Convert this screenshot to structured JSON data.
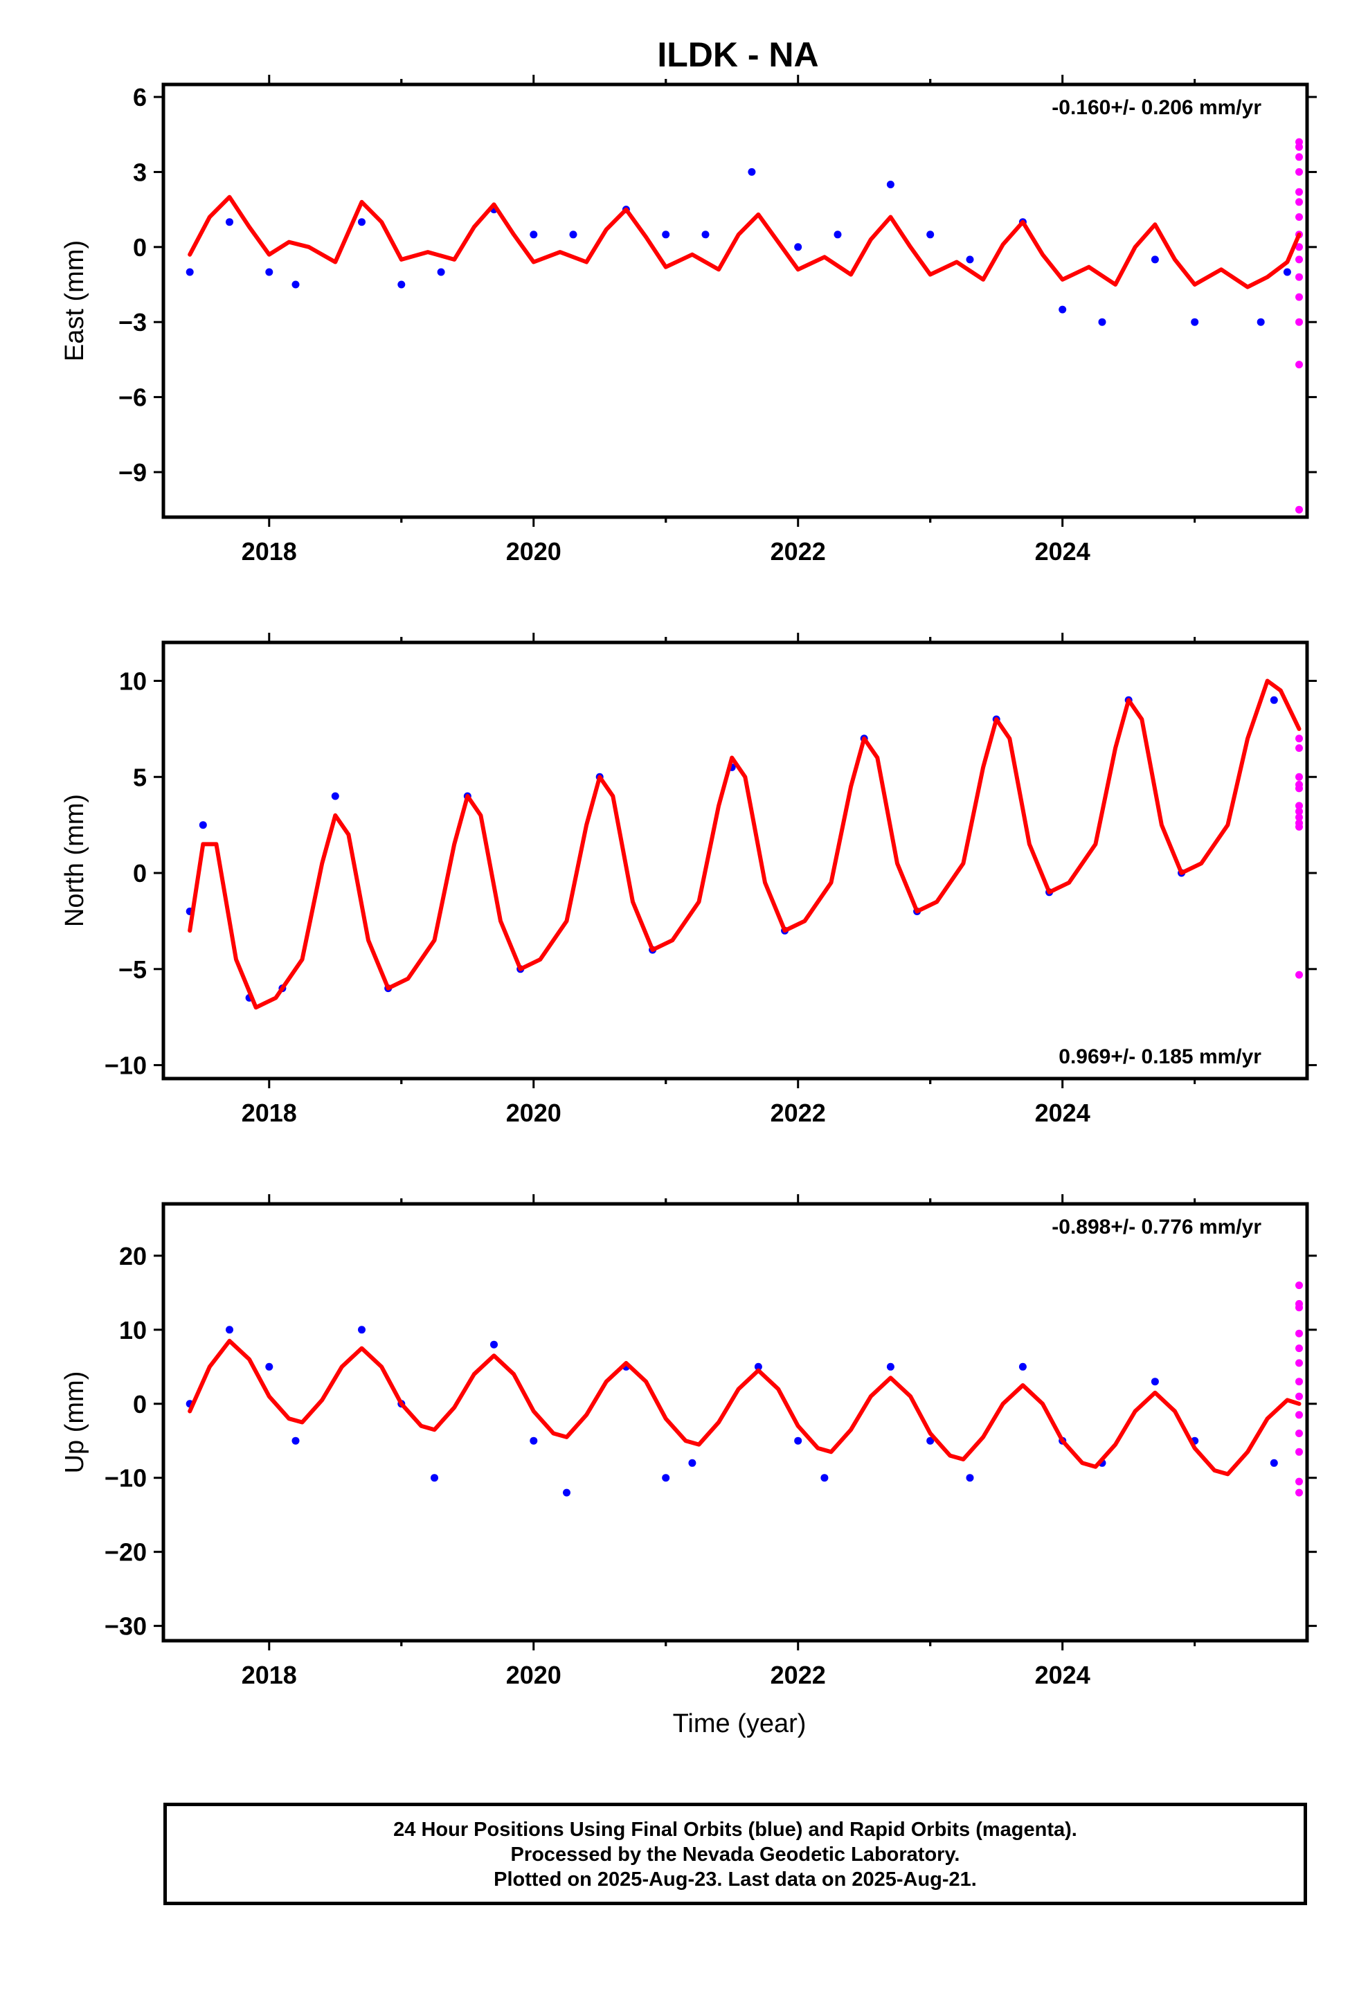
{
  "title": "ILDK - NA",
  "xlabel": "Time (year)",
  "colors": {
    "final": "#0000ff",
    "rapid": "#ff00ff",
    "fit": "#ff0000",
    "frame": "#000000"
  },
  "chart_data": [
    {
      "type": "scatter",
      "ylabel": "East (mm)",
      "rate_text": "-0.160+/- 0.206 mm/yr",
      "rate_pos": "top-right",
      "xlim": [
        2017.2,
        2025.85
      ],
      "ylim": [
        -10.8,
        6.5
      ],
      "xticks": [
        2018,
        2020,
        2022,
        2024
      ],
      "yticks": [
        -9,
        -6,
        -3,
        0,
        3,
        6
      ],
      "series": [
        {
          "kind": "final_orbits",
          "x": [
            2017.4,
            2017.7,
            2018.0,
            2018.2,
            2018.7,
            2019.0,
            2019.3,
            2019.7,
            2020.0,
            2020.3,
            2020.7,
            2021.0,
            2021.3,
            2021.65,
            2022.0,
            2022.3,
            2022.7,
            2023.0,
            2023.3,
            2023.7,
            2024.0,
            2024.3,
            2024.7,
            2025.0,
            2025.5,
            2025.7
          ],
          "y": [
            -1.0,
            1.0,
            -1.0,
            -1.5,
            1.0,
            -1.5,
            -1.0,
            1.5,
            0.5,
            0.5,
            1.5,
            0.5,
            0.5,
            3.0,
            0.0,
            0.5,
            2.5,
            0.5,
            -0.5,
            1.0,
            -2.5,
            -3.0,
            -0.5,
            -3.0,
            -3.0,
            -1.0
          ]
        },
        {
          "kind": "rapid_orbits",
          "x": [
            2025.79,
            2025.79,
            2025.79,
            2025.79,
            2025.79,
            2025.79,
            2025.79,
            2025.79,
            2025.79,
            2025.79,
            2025.79,
            2025.79,
            2025.79,
            2025.79,
            2025.79
          ],
          "y": [
            4.2,
            4.0,
            3.6,
            3.0,
            2.2,
            1.8,
            1.2,
            0.5,
            0.0,
            -0.5,
            -1.2,
            -2.0,
            -3.0,
            -4.7,
            -10.5
          ]
        },
        {
          "kind": "model_fit",
          "x": [
            2017.4,
            2017.55,
            2017.7,
            2017.85,
            2018.0,
            2018.15,
            2018.3,
            2018.5,
            2018.7,
            2018.85,
            2019.0,
            2019.2,
            2019.4,
            2019.55,
            2019.7,
            2019.85,
            2020.0,
            2020.2,
            2020.4,
            2020.55,
            2020.7,
            2020.85,
            2021.0,
            2021.2,
            2021.4,
            2021.55,
            2021.7,
            2021.85,
            2022.0,
            2022.2,
            2022.4,
            2022.55,
            2022.7,
            2022.85,
            2023.0,
            2023.2,
            2023.4,
            2023.55,
            2023.7,
            2023.85,
            2024.0,
            2024.2,
            2024.4,
            2024.55,
            2024.7,
            2024.85,
            2025.0,
            2025.2,
            2025.4,
            2025.55,
            2025.7,
            2025.79
          ],
          "y": [
            -0.3,
            1.2,
            2.0,
            0.8,
            -0.3,
            0.2,
            0.0,
            -0.6,
            1.8,
            1.0,
            -0.5,
            -0.2,
            -0.5,
            0.8,
            1.7,
            0.5,
            -0.6,
            -0.2,
            -0.6,
            0.7,
            1.5,
            0.4,
            -0.8,
            -0.3,
            -0.9,
            0.5,
            1.3,
            0.2,
            -0.9,
            -0.4,
            -1.1,
            0.3,
            1.2,
            0.0,
            -1.1,
            -0.6,
            -1.3,
            0.1,
            1.0,
            -0.3,
            -1.3,
            -0.8,
            -1.5,
            0.0,
            0.9,
            -0.5,
            -1.5,
            -0.9,
            -1.6,
            -1.2,
            -0.6,
            0.5
          ]
        }
      ]
    },
    {
      "type": "scatter",
      "ylabel": "North (mm)",
      "rate_text": "0.969+/- 0.185 mm/yr",
      "rate_pos": "bottom-right",
      "xlim": [
        2017.2,
        2025.85
      ],
      "ylim": [
        -10.7,
        12.0
      ],
      "xticks": [
        2018,
        2020,
        2022,
        2024
      ],
      "yticks": [
        -10,
        -5,
        0,
        5,
        10
      ],
      "series": [
        {
          "kind": "final_orbits",
          "x": [
            2017.4,
            2017.5,
            2017.85,
            2018.1,
            2018.5,
            2018.9,
            2019.5,
            2019.9,
            2020.5,
            2020.9,
            2021.5,
            2021.9,
            2022.5,
            2022.9,
            2023.5,
            2023.9,
            2024.5,
            2024.9,
            2025.6
          ],
          "y": [
            -2.0,
            2.5,
            -6.5,
            -6.0,
            4.0,
            -6.0,
            4.0,
            -5.0,
            5.0,
            -4.0,
            5.5,
            -3.0,
            7.0,
            -2.0,
            8.0,
            -1.0,
            9.0,
            0.0,
            9.0
          ]
        },
        {
          "kind": "rapid_orbits",
          "x": [
            2025.79,
            2025.79,
            2025.79,
            2025.79,
            2025.79,
            2025.79,
            2025.79,
            2025.79,
            2025.79,
            2025.79,
            2025.79
          ],
          "y": [
            7.0,
            6.5,
            5.0,
            4.6,
            4.4,
            3.5,
            3.2,
            2.9,
            2.6,
            2.4,
            -5.3
          ]
        },
        {
          "kind": "model_fit",
          "x": [
            2017.4,
            2017.5,
            2017.6,
            2017.75,
            2017.9,
            2018.05,
            2018.25,
            2018.4,
            2018.5,
            2018.6,
            2018.75,
            2018.9,
            2019.05,
            2019.25,
            2019.4,
            2019.5,
            2019.6,
            2019.75,
            2019.9,
            2020.05,
            2020.25,
            2020.4,
            2020.5,
            2020.6,
            2020.75,
            2020.9,
            2021.05,
            2021.25,
            2021.4,
            2021.5,
            2021.6,
            2021.75,
            2021.9,
            2022.05,
            2022.25,
            2022.4,
            2022.5,
            2022.6,
            2022.75,
            2022.9,
            2023.05,
            2023.25,
            2023.4,
            2023.5,
            2023.6,
            2023.75,
            2023.9,
            2024.05,
            2024.25,
            2024.4,
            2024.5,
            2024.6,
            2024.75,
            2024.9,
            2025.05,
            2025.25,
            2025.4,
            2025.55,
            2025.65,
            2025.79
          ],
          "y": [
            -3.0,
            1.5,
            1.5,
            -4.5,
            -7.0,
            -6.5,
            -4.5,
            0.5,
            3.0,
            2.0,
            -3.5,
            -6.0,
            -5.5,
            -3.5,
            1.5,
            4.0,
            3.0,
            -2.5,
            -5.0,
            -4.5,
            -2.5,
            2.5,
            5.0,
            4.0,
            -1.5,
            -4.0,
            -3.5,
            -1.5,
            3.5,
            6.0,
            5.0,
            -0.5,
            -3.0,
            -2.5,
            -0.5,
            4.5,
            7.0,
            6.0,
            0.5,
            -2.0,
            -1.5,
            0.5,
            5.5,
            8.0,
            7.0,
            1.5,
            -1.0,
            -0.5,
            1.5,
            6.5,
            9.0,
            8.0,
            2.5,
            0.0,
            0.5,
            2.5,
            7.0,
            10.0,
            9.5,
            7.5
          ]
        }
      ]
    },
    {
      "type": "scatter",
      "ylabel": "Up (mm)",
      "rate_text": "-0.898+/- 0.776 mm/yr",
      "rate_pos": "top-right",
      "xlim": [
        2017.2,
        2025.85
      ],
      "ylim": [
        -32,
        27
      ],
      "xticks": [
        2018,
        2020,
        2022,
        2024
      ],
      "yticks": [
        -30,
        -20,
        -10,
        0,
        10,
        20
      ],
      "series": [
        {
          "kind": "final_orbits",
          "x": [
            2017.4,
            2017.7,
            2018.0,
            2018.2,
            2018.7,
            2019.0,
            2019.25,
            2019.7,
            2020.0,
            2020.25,
            2020.7,
            2021.0,
            2021.2,
            2021.7,
            2022.0,
            2022.2,
            2022.7,
            2023.0,
            2023.3,
            2023.7,
            2024.0,
            2024.3,
            2024.7,
            2025.0,
            2025.6
          ],
          "y": [
            0.0,
            10.0,
            5.0,
            -5.0,
            10.0,
            0.0,
            -10.0,
            8.0,
            -5.0,
            -12.0,
            5.0,
            -10.0,
            -8.0,
            5.0,
            -5.0,
            -10.0,
            5.0,
            -5.0,
            -10.0,
            5.0,
            -5.0,
            -8.0,
            3.0,
            -5.0,
            -8.0
          ]
        },
        {
          "kind": "rapid_orbits",
          "x": [
            2025.79,
            2025.79,
            2025.79,
            2025.79,
            2025.79,
            2025.79,
            2025.79,
            2025.79,
            2025.79,
            2025.79,
            2025.79,
            2025.79,
            2025.79
          ],
          "y": [
            16.0,
            13.5,
            13.0,
            9.5,
            7.5,
            5.5,
            3.0,
            1.0,
            -1.5,
            -4.0,
            -6.5,
            -10.5,
            -12.0
          ]
        },
        {
          "kind": "model_fit",
          "x": [
            2017.4,
            2017.55,
            2017.7,
            2017.85,
            2018.0,
            2018.15,
            2018.25,
            2018.4,
            2018.55,
            2018.7,
            2018.85,
            2019.0,
            2019.15,
            2019.25,
            2019.4,
            2019.55,
            2019.7,
            2019.85,
            2020.0,
            2020.15,
            2020.25,
            2020.4,
            2020.55,
            2020.7,
            2020.85,
            2021.0,
            2021.15,
            2021.25,
            2021.4,
            2021.55,
            2021.7,
            2021.85,
            2022.0,
            2022.15,
            2022.25,
            2022.4,
            2022.55,
            2022.7,
            2022.85,
            2023.0,
            2023.15,
            2023.25,
            2023.4,
            2023.55,
            2023.7,
            2023.85,
            2024.0,
            2024.15,
            2024.25,
            2024.4,
            2024.55,
            2024.7,
            2024.85,
            2025.0,
            2025.15,
            2025.25,
            2025.4,
            2025.55,
            2025.7,
            2025.79
          ],
          "y": [
            -1.0,
            5.0,
            8.5,
            6.0,
            1.0,
            -2.0,
            -2.5,
            0.5,
            5.0,
            7.5,
            5.0,
            0.0,
            -3.0,
            -3.5,
            -0.5,
            4.0,
            6.5,
            4.0,
            -1.0,
            -4.0,
            -4.5,
            -1.5,
            3.0,
            5.5,
            3.0,
            -2.0,
            -5.0,
            -5.5,
            -2.5,
            2.0,
            4.5,
            2.0,
            -3.0,
            -6.0,
            -6.5,
            -3.5,
            1.0,
            3.5,
            1.0,
            -4.0,
            -7.0,
            -7.5,
            -4.5,
            0.0,
            2.5,
            0.0,
            -5.0,
            -8.0,
            -8.5,
            -5.5,
            -1.0,
            1.5,
            -1.0,
            -6.0,
            -9.0,
            -9.5,
            -6.5,
            -2.0,
            0.5,
            0.0
          ]
        }
      ]
    }
  ],
  "footer": {
    "line1": "24 Hour Positions Using Final Orbits (blue) and Rapid Orbits (magenta).",
    "line2": "Processed by the Nevada Geodetic Laboratory.",
    "line3": "Plotted on 2025-Aug-23. Last data on 2025-Aug-21."
  }
}
